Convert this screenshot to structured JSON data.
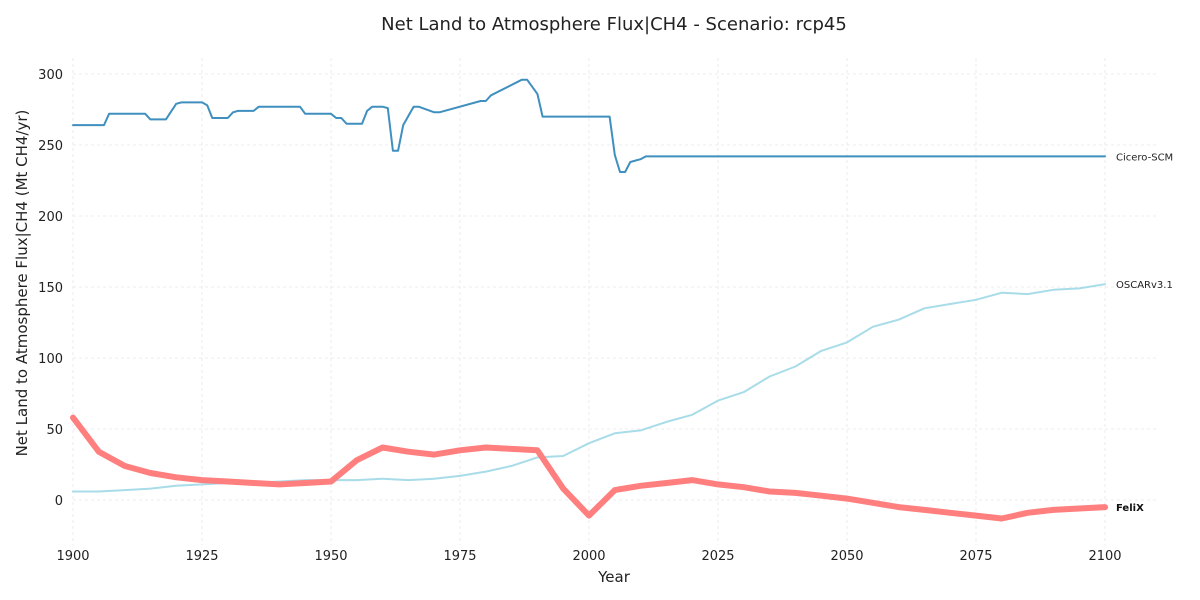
{
  "chart_data": {
    "type": "line",
    "title": "Net Land to Atmosphere Flux|CH4 - Scenario: rcp45",
    "xlabel": "Year",
    "ylabel": "Net Land to Atmosphere Flux|CH4 (Mt CH4/yr)",
    "xlim": [
      1900,
      2110
    ],
    "ylim": [
      -30,
      310
    ],
    "x_ticks": [
      1900,
      1925,
      1950,
      1975,
      2000,
      2025,
      2050,
      2075,
      2100
    ],
    "y_ticks": [
      0,
      50,
      100,
      150,
      200,
      250,
      300
    ],
    "grid": true,
    "legend": "labels at line ends (right)",
    "series": [
      {
        "name": "Cicero-SCM",
        "color": "#3f8fbf",
        "x": [
          1900,
          1906,
          1907,
          1914,
          1915,
          1918,
          1920,
          1921,
          1925,
          1926,
          1927,
          1930,
          1931,
          1932,
          1935,
          1936,
          1944,
          1945,
          1950,
          1951,
          1952,
          1953,
          1956,
          1957,
          1958,
          1960,
          1961,
          1962,
          1963,
          1964,
          1966,
          1967,
          1970,
          1971,
          1979,
          1980,
          1981,
          1987,
          1988,
          1990,
          1991,
          2004,
          2005,
          2006,
          2007,
          2008,
          2010,
          2011,
          2100
        ],
        "y": [
          264,
          264,
          272,
          272,
          268,
          268,
          279,
          280,
          280,
          278,
          269,
          269,
          273,
          274,
          274,
          277,
          277,
          272,
          272,
          269,
          269,
          265,
          265,
          274,
          277,
          277,
          276,
          246,
          246,
          264,
          277,
          277,
          273,
          273,
          281,
          281,
          285,
          296,
          296,
          286,
          270,
          270,
          243,
          231,
          231,
          238,
          240,
          242,
          242
        ]
      },
      {
        "name": "OSCARv3.1",
        "color": "#a8dce8",
        "x": [
          1900,
          1905,
          1910,
          1915,
          1920,
          1925,
          1930,
          1935,
          1940,
          1945,
          1950,
          1955,
          1960,
          1965,
          1970,
          1975,
          1980,
          1985,
          1990,
          1995,
          2000,
          2005,
          2010,
          2015,
          2020,
          2025,
          2030,
          2035,
          2040,
          2045,
          2050,
          2055,
          2060,
          2065,
          2070,
          2075,
          2080,
          2085,
          2090,
          2095,
          2100
        ],
        "y": [
          6,
          6,
          7,
          8,
          10,
          11,
          12,
          12,
          13,
          14,
          14,
          14,
          15,
          14,
          15,
          17,
          20,
          24,
          30,
          31,
          40,
          47,
          49,
          55,
          60,
          70,
          76,
          87,
          94,
          105,
          111,
          122,
          127,
          135,
          138,
          141,
          146,
          145,
          148,
          149,
          152
        ]
      },
      {
        "name": "FeliX",
        "color": "#ff7f7f",
        "x": [
          1900,
          1905,
          1910,
          1915,
          1920,
          1925,
          1930,
          1935,
          1940,
          1945,
          1950,
          1955,
          1960,
          1965,
          1970,
          1975,
          1980,
          1985,
          1990,
          1995,
          2000,
          2005,
          2010,
          2015,
          2020,
          2025,
          2030,
          2035,
          2040,
          2045,
          2050,
          2055,
          2060,
          2065,
          2070,
          2075,
          2080,
          2085,
          2090,
          2095,
          2100
        ],
        "y": [
          58,
          34,
          24,
          19,
          16,
          14,
          13,
          12,
          11,
          12,
          13,
          28,
          37,
          34,
          32,
          35,
          37,
          36,
          35,
          8,
          -11,
          7,
          10,
          12,
          14,
          11,
          9,
          6,
          5,
          3,
          1,
          -2,
          -5,
          -7,
          -9,
          -11,
          -13,
          -9,
          -7,
          -6,
          -5
        ]
      }
    ]
  }
}
